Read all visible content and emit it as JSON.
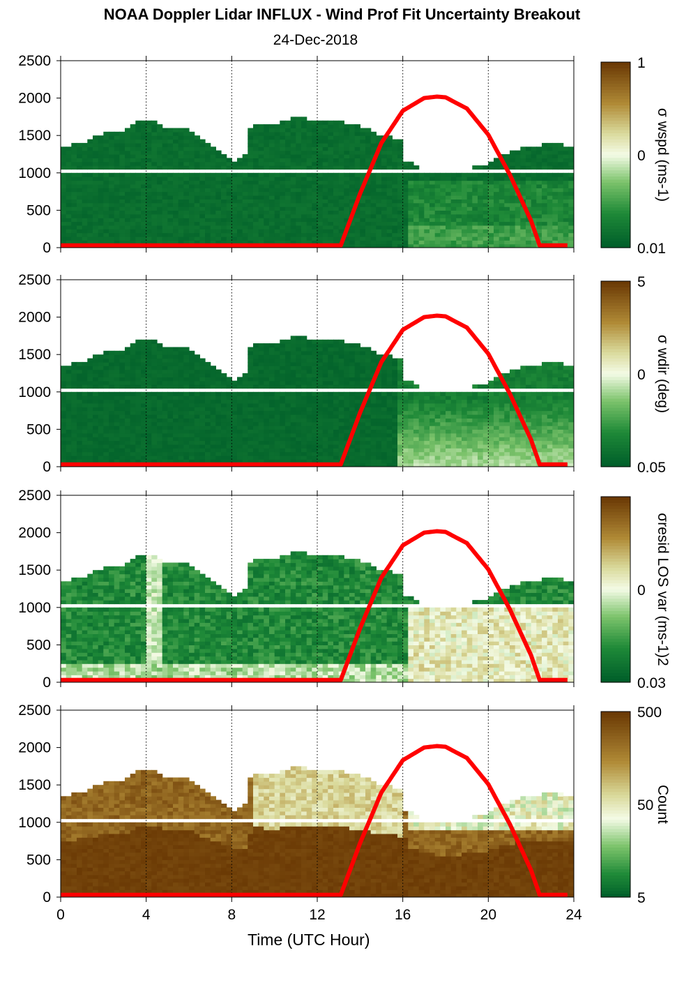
{
  "figure": {
    "title": "NOAA Doppler Lidar INFLUX - Wind Prof Fit Uncertainty Breakout",
    "subtitle": "24-Dec-2018",
    "xlabel": "Time (UTC Hour)"
  },
  "colors": {
    "curve": "#ff0000",
    "scale_low": "#005f2a",
    "scale_mid": "#f4fbe6",
    "scale_high": "#6b3a05"
  },
  "chart_data": [
    {
      "type": "heatmap",
      "xlim": [
        0,
        24
      ],
      "ylim": [
        0,
        2500
      ],
      "xticks": [
        "0",
        "4",
        "8",
        "12",
        "16",
        "20",
        "24"
      ],
      "yticks": [
        "0",
        "500",
        "1000",
        "1500",
        "2000",
        "2500"
      ],
      "grid": "dotted vertical at x=4,8,12,16,20",
      "colorbar": {
        "label": "σ wspd (ms-1)",
        "ticks": [
          "1",
          "0",
          "0.01"
        ],
        "scale": "log"
      },
      "top_height_m": [
        [
          0,
          1330
        ],
        [
          1,
          1380
        ],
        [
          2,
          1510
        ],
        [
          3,
          1540
        ],
        [
          3.5,
          1670
        ],
        [
          4.6,
          1650
        ],
        [
          5,
          1560
        ],
        [
          6,
          1560
        ],
        [
          7,
          1340
        ],
        [
          7.8,
          1200
        ],
        [
          8,
          1100
        ],
        [
          8.6,
          1190
        ],
        [
          8.8,
          1560
        ],
        [
          9,
          1650
        ],
        [
          10,
          1610
        ],
        [
          11,
          1720
        ],
        [
          12,
          1680
        ],
        [
          13,
          1660
        ],
        [
          14,
          1600
        ],
        [
          15,
          1480
        ],
        [
          16,
          1430
        ],
        [
          16.1,
          1150
        ],
        [
          17,
          1020
        ],
        [
          18,
          950
        ],
        [
          19,
          1030
        ],
        [
          20,
          1110
        ],
        [
          21,
          1270
        ],
        [
          22,
          1340
        ],
        [
          23,
          1360
        ],
        [
          23.8,
          1340
        ]
      ],
      "curve_height_m": [
        [
          0,
          30
        ],
        [
          13.1,
          30
        ],
        [
          14,
          720
        ],
        [
          15,
          1400
        ],
        [
          16,
          1830
        ],
        [
          17,
          2000
        ],
        [
          17.6,
          2020
        ],
        [
          18,
          2010
        ],
        [
          19,
          1860
        ],
        [
          20,
          1510
        ],
        [
          21,
          980
        ],
        [
          22,
          360
        ],
        [
          22.4,
          30
        ],
        [
          23.8,
          30
        ]
      ]
    },
    {
      "type": "heatmap",
      "xlim": [
        0,
        24
      ],
      "ylim": [
        0,
        2500
      ],
      "xticks": [
        "0",
        "4",
        "8",
        "12",
        "16",
        "20",
        "24"
      ],
      "yticks": [
        "0",
        "500",
        "1000",
        "1500",
        "2000",
        "2500"
      ],
      "colorbar": {
        "label": "σ wdir (deg)",
        "ticks": [
          "5",
          "0",
          "0.05"
        ],
        "scale": "log"
      }
    },
    {
      "type": "heatmap",
      "xlim": [
        0,
        24
      ],
      "ylim": [
        0,
        2500
      ],
      "xticks": [
        "0",
        "4",
        "8",
        "12",
        "16",
        "20",
        "24"
      ],
      "yticks": [
        "0",
        "500",
        "1000",
        "1500",
        "2000",
        "2500"
      ],
      "colorbar": {
        "label": "σresid LOS var (ms-1)2",
        "ticks": [
          "0",
          "0.03"
        ],
        "scale": "log"
      }
    },
    {
      "type": "heatmap",
      "xlim": [
        0,
        24
      ],
      "ylim": [
        0,
        2500
      ],
      "xticks": [
        "0",
        "4",
        "8",
        "12",
        "16",
        "20",
        "24"
      ],
      "yticks": [
        "0",
        "500",
        "1000",
        "1500",
        "2000",
        "2500"
      ],
      "colorbar": {
        "label": "Count",
        "ticks": [
          "500",
          "50",
          "5"
        ],
        "scale": "log"
      }
    }
  ]
}
